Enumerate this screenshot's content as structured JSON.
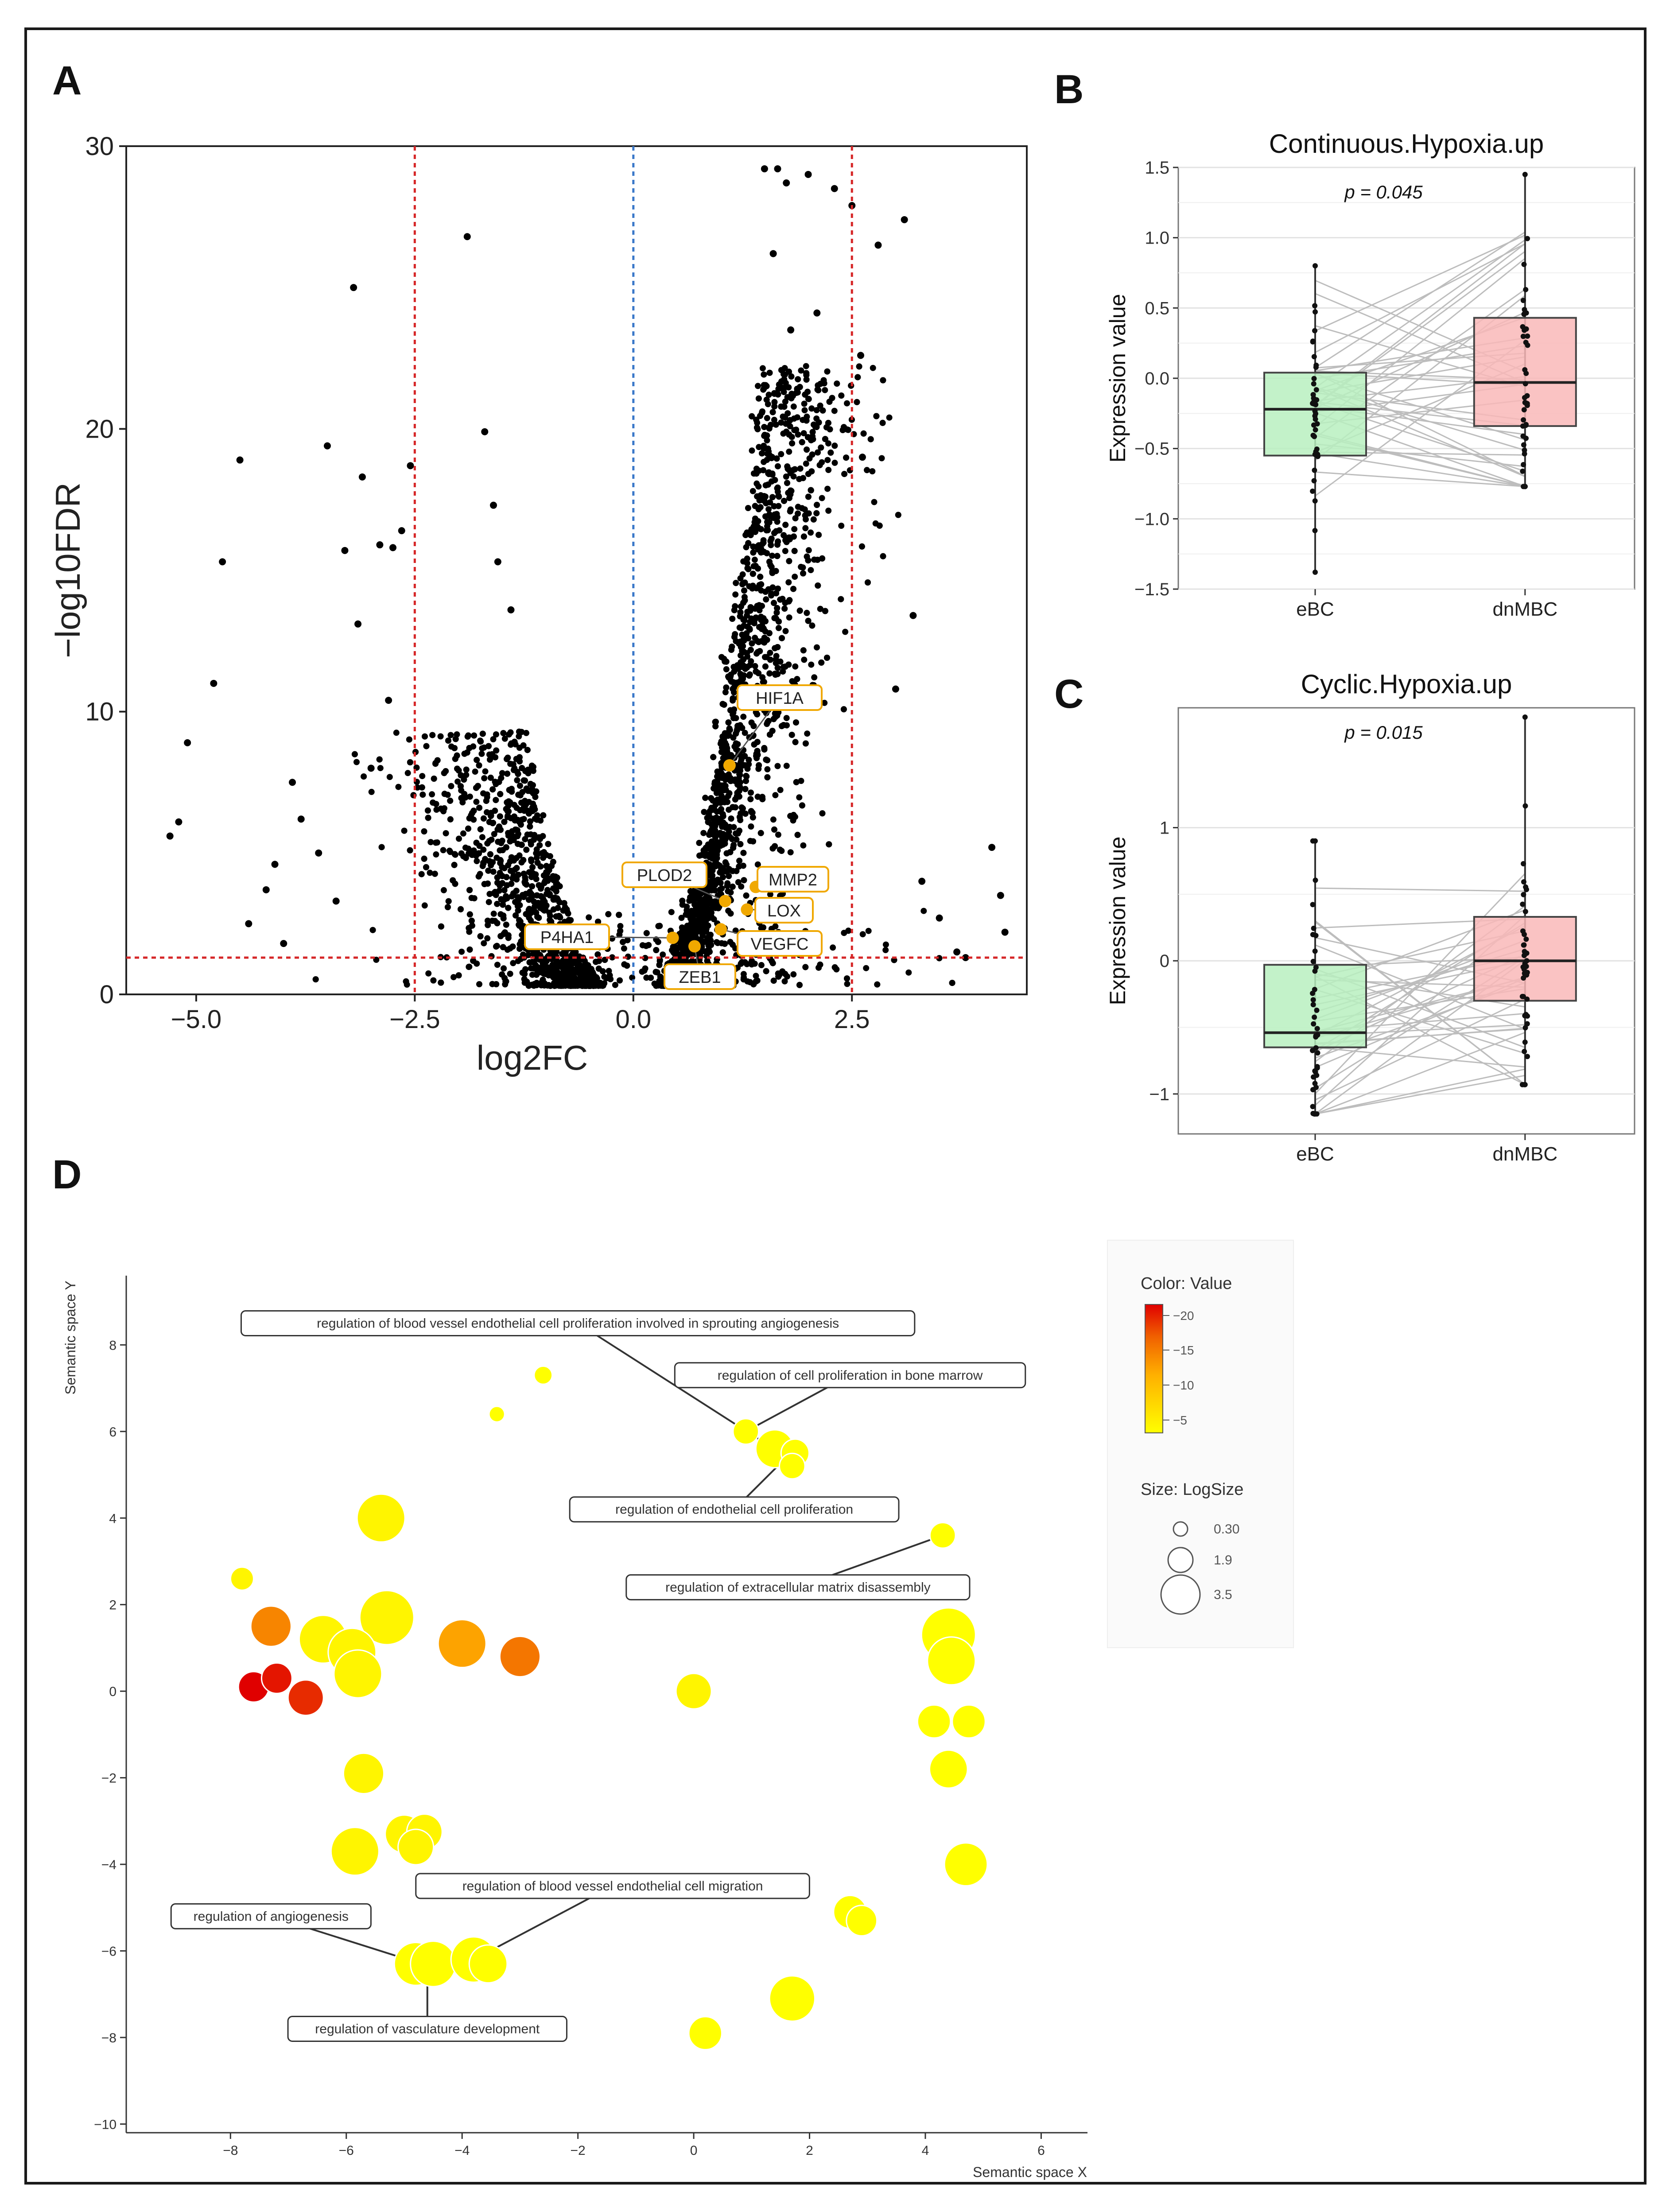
{
  "panels": {
    "A": "A",
    "B": "B",
    "C": "C",
    "D": "D"
  },
  "colors": {
    "point": "#000000",
    "highlight": "#f0a800",
    "red_line": "#d62728",
    "blue_line": "#3a78c9",
    "green_box": "#b8f0c0",
    "pink_box": "#f9b8b8"
  },
  "chart_data": [
    {
      "id": "A",
      "type": "scatter",
      "xlabel": "log2FC",
      "ylabel": "−log10FDR",
      "xlim": [
        -5.8,
        4.5
      ],
      "ylim": [
        0,
        30
      ],
      "xticks": [
        -5.0,
        -2.5,
        0.0,
        2.5
      ],
      "xtick_labels": [
        "−5.0",
        "−2.5",
        "0.0",
        "2.5"
      ],
      "yticks": [
        0,
        10,
        20,
        30
      ],
      "ytick_labels": [
        "0",
        "10",
        "20",
        "30"
      ],
      "thresholds": {
        "log2fc": [
          -2.5,
          2.5
        ],
        "center": 0,
        "fdr": 1.3
      },
      "highlighted_genes": [
        {
          "label": "HIF1A",
          "x": 1.1,
          "y": 8.1
        },
        {
          "label": "PLOD2",
          "x": 1.05,
          "y": 3.3
        },
        {
          "label": "MMP2",
          "x": 1.4,
          "y": 3.8
        },
        {
          "label": "LOX",
          "x": 1.3,
          "y": 3.0
        },
        {
          "label": "P4HA1",
          "x": 0.45,
          "y": 2.0
        },
        {
          "label": "VEGFC",
          "x": 1.0,
          "y": 2.3
        },
        {
          "label": "ZEB1",
          "x": 0.7,
          "y": 1.7
        }
      ],
      "outliers": [
        [
          -5.3,
          5.6
        ],
        [
          -5.2,
          6.1
        ],
        [
          -5.1,
          8.9
        ],
        [
          -4.8,
          11.0
        ],
        [
          -4.7,
          15.3
        ],
        [
          -4.5,
          18.9
        ],
        [
          -4.4,
          2.5
        ],
        [
          -4.2,
          3.7
        ],
        [
          -4.1,
          4.6
        ],
        [
          -4.0,
          1.8
        ],
        [
          -3.9,
          7.5
        ],
        [
          -3.8,
          6.2
        ],
        [
          -3.6,
          5.0
        ],
        [
          -3.5,
          19.4
        ],
        [
          -3.4,
          3.3
        ],
        [
          -3.3,
          15.7
        ],
        [
          -3.2,
          25.0
        ],
        [
          -3.15,
          13.1
        ],
        [
          -3.1,
          18.3
        ],
        [
          -3.0,
          8.0
        ],
        [
          -2.9,
          15.9
        ],
        [
          -2.8,
          10.4
        ],
        [
          -2.75,
          15.8
        ],
        [
          -2.65,
          16.4
        ],
        [
          -2.55,
          18.7
        ],
        [
          -1.9,
          26.8
        ],
        [
          -1.7,
          19.9
        ],
        [
          -1.6,
          17.3
        ],
        [
          -1.55,
          15.3
        ],
        [
          -1.4,
          13.6
        ],
        [
          1.5,
          29.2
        ],
        [
          1.65,
          29.2
        ],
        [
          1.75,
          28.7
        ],
        [
          2.0,
          29.0
        ],
        [
          2.1,
          24.1
        ],
        [
          1.8,
          23.5
        ],
        [
          1.6,
          26.2
        ],
        [
          2.3,
          28.5
        ],
        [
          2.5,
          27.9
        ],
        [
          2.6,
          22.6
        ],
        [
          2.62,
          19.0
        ],
        [
          2.8,
          26.5
        ],
        [
          3.1,
          27.4
        ],
        [
          3.2,
          13.4
        ],
        [
          3.0,
          10.8
        ],
        [
          3.3,
          4.0
        ],
        [
          3.5,
          2.7
        ],
        [
          3.7,
          1.5
        ],
        [
          4.1,
          5.2
        ],
        [
          4.2,
          3.5
        ],
        [
          4.25,
          2.2
        ],
        [
          3.8,
          1.3
        ]
      ]
    },
    {
      "id": "B",
      "type": "box",
      "title": "Continuous.Hypoxia.up",
      "ylabel": "Expression value",
      "categories": [
        "eBC",
        "dnMBC"
      ],
      "ylim": [
        -1.5,
        1.5
      ],
      "yticks": [
        -1.5,
        -1.0,
        -0.5,
        0.0,
        0.5,
        1.0,
        1.5
      ],
      "ytick_labels": [
        "−1.5",
        "−1.0",
        "−0.5",
        "0.0",
        "0.5",
        "1.0",
        "1.5"
      ],
      "annotation": "p = 0.045",
      "boxes": [
        {
          "name": "eBC",
          "q1": -0.55,
          "median": -0.22,
          "q3": 0.04,
          "min": -1.38,
          "max": 0.8
        },
        {
          "name": "dnMBC",
          "q1": -0.34,
          "median": -0.03,
          "q3": 0.43,
          "min": -0.77,
          "max": 1.45
        }
      ]
    },
    {
      "id": "C",
      "type": "box",
      "title": "Cyclic.Hypoxia.up",
      "ylabel": "Expression value",
      "categories": [
        "eBC",
        "dnMBC"
      ],
      "ylim": [
        -1.3,
        1.9
      ],
      "yticks": [
        -1,
        0,
        1
      ],
      "ytick_labels": [
        "−1",
        "0",
        "1"
      ],
      "annotation": "p = 0.015",
      "boxes": [
        {
          "name": "eBC",
          "q1": -0.65,
          "median": -0.54,
          "q3": -0.03,
          "min": -1.15,
          "max": 0.9
        },
        {
          "name": "dnMBC",
          "q1": -0.3,
          "median": 0.0,
          "q3": 0.33,
          "min": -0.93,
          "max": 1.83
        }
      ]
    },
    {
      "id": "D",
      "type": "scatter",
      "xlabel": "Semantic space X",
      "ylabel": "Semantic space Y",
      "xlim": [
        -9.8,
        6.8
      ],
      "ylim": [
        -10.2,
        9.6
      ],
      "xticks": [
        -8,
        -6,
        -4,
        -2,
        0,
        2,
        4,
        6
      ],
      "yticks": [
        -10,
        -8,
        -6,
        -4,
        -2,
        0,
        2,
        4,
        6,
        8
      ],
      "xtick_labels": [
        "−8",
        "−6",
        "−4",
        "−2",
        "0",
        "2",
        "4",
        "6"
      ],
      "ytick_labels": [
        "−10",
        "−8",
        "−6",
        "−4",
        "−2",
        "0",
        "2",
        "4",
        "6",
        "8"
      ],
      "legend": {
        "color_title": "Color: Value",
        "color_ticks": [
          "−20",
          "−15",
          "−10",
          "−5"
        ],
        "size_title": "Size: LogSize",
        "size_ticks": [
          "0.30",
          "1.9",
          "3.5"
        ]
      },
      "points": [
        {
          "x": -2.6,
          "y": 7.3,
          "size": 0.6,
          "value": -3
        },
        {
          "x": -3.4,
          "y": 6.4,
          "size": 0.4,
          "value": -3
        },
        {
          "x": 0.9,
          "y": 6.0,
          "size": 1.2,
          "value": -3
        },
        {
          "x": 1.4,
          "y": 5.6,
          "size": 2.2,
          "value": -3
        },
        {
          "x": 1.75,
          "y": 5.5,
          "size": 1.4,
          "value": -3
        },
        {
          "x": 1.7,
          "y": 5.2,
          "size": 1.2,
          "value": -3
        },
        {
          "x": -5.4,
          "y": 4.0,
          "size": 3.0,
          "value": -4
        },
        {
          "x": 4.3,
          "y": 3.6,
          "size": 1.2,
          "value": -3
        },
        {
          "x": -7.8,
          "y": 2.6,
          "size": 1.0,
          "value": -4
        },
        {
          "x": -5.3,
          "y": 1.7,
          "size": 3.5,
          "value": -4
        },
        {
          "x": -7.3,
          "y": 1.5,
          "size": 2.4,
          "value": -14
        },
        {
          "x": -6.4,
          "y": 1.2,
          "size": 3.0,
          "value": -4
        },
        {
          "x": -5.9,
          "y": 0.9,
          "size": 3.0,
          "value": -4
        },
        {
          "x": -4.0,
          "y": 1.1,
          "size": 3.0,
          "value": -12
        },
        {
          "x": -3.0,
          "y": 0.8,
          "size": 2.4,
          "value": -15
        },
        {
          "x": -5.8,
          "y": 0.4,
          "size": 3.0,
          "value": -4
        },
        {
          "x": -7.6,
          "y": 0.1,
          "size": 1.6,
          "value": -21
        },
        {
          "x": -7.2,
          "y": 0.3,
          "size": 1.6,
          "value": -20
        },
        {
          "x": -6.7,
          "y": -0.15,
          "size": 2.0,
          "value": -19
        },
        {
          "x": 0.0,
          "y": 0.0,
          "size": 2.0,
          "value": -4
        },
        {
          "x": 4.4,
          "y": 1.3,
          "size": 3.5,
          "value": -3
        },
        {
          "x": 4.45,
          "y": 0.7,
          "size": 3.0,
          "value": -3
        },
        {
          "x": 4.15,
          "y": -0.7,
          "size": 1.8,
          "value": -3
        },
        {
          "x": 4.75,
          "y": -0.7,
          "size": 1.8,
          "value": -3
        },
        {
          "x": 4.4,
          "y": -1.8,
          "size": 2.2,
          "value": -3
        },
        {
          "x": -5.7,
          "y": -1.9,
          "size": 2.4,
          "value": -4
        },
        {
          "x": -5.0,
          "y": -3.3,
          "size": 2.2,
          "value": -4
        },
        {
          "x": -4.65,
          "y": -3.25,
          "size": 2.0,
          "value": -4
        },
        {
          "x": -4.8,
          "y": -3.6,
          "size": 2.0,
          "value": -4
        },
        {
          "x": -5.85,
          "y": -3.7,
          "size": 3.0,
          "value": -4
        },
        {
          "x": 4.7,
          "y": -4.0,
          "size": 2.6,
          "value": -3
        },
        {
          "x": 2.7,
          "y": -5.1,
          "size": 1.8,
          "value": -3
        },
        {
          "x": 2.9,
          "y": -5.3,
          "size": 1.6,
          "value": -3
        },
        {
          "x": -4.8,
          "y": -6.3,
          "size": 2.6,
          "value": -3
        },
        {
          "x": -4.5,
          "y": -6.3,
          "size": 2.8,
          "value": -3
        },
        {
          "x": -3.8,
          "y": -6.2,
          "size": 2.8,
          "value": -3
        },
        {
          "x": -3.55,
          "y": -6.3,
          "size": 2.2,
          "value": -3
        },
        {
          "x": 1.7,
          "y": -7.1,
          "size": 2.8,
          "value": -3
        },
        {
          "x": 0.2,
          "y": -7.9,
          "size": 1.8,
          "value": -3
        }
      ],
      "annotations": [
        {
          "label": "regulation of blood vessel endothelial cell proliferation involved in sprouting angiogenesis",
          "lx": -2.0,
          "ly": 8.5,
          "px": 1.5,
          "py": 5.5
        },
        {
          "label": "regulation of cell proliferation in bone marrow",
          "lx": 2.7,
          "ly": 7.3,
          "px": 0.9,
          "py": 6.0
        },
        {
          "label": "regulation of endothelial cell proliferation",
          "lx": 0.7,
          "ly": 4.2,
          "px": 1.6,
          "py": 5.4
        },
        {
          "label": "regulation of extracellular matrix disassembly",
          "lx": 1.8,
          "ly": 2.4,
          "px": 4.3,
          "py": 3.6
        },
        {
          "label": "regulation of blood vessel endothelial cell migration",
          "lx": -1.4,
          "ly": -4.5,
          "px": -3.8,
          "py": -6.2
        },
        {
          "label": "regulation of angiogenesis",
          "lx": -7.3,
          "ly": -5.2,
          "px": -4.7,
          "py": -6.3
        },
        {
          "label": "regulation of vasculature development",
          "lx": -4.6,
          "ly": -7.8,
          "px": -4.6,
          "py": -6.4
        }
      ]
    }
  ]
}
